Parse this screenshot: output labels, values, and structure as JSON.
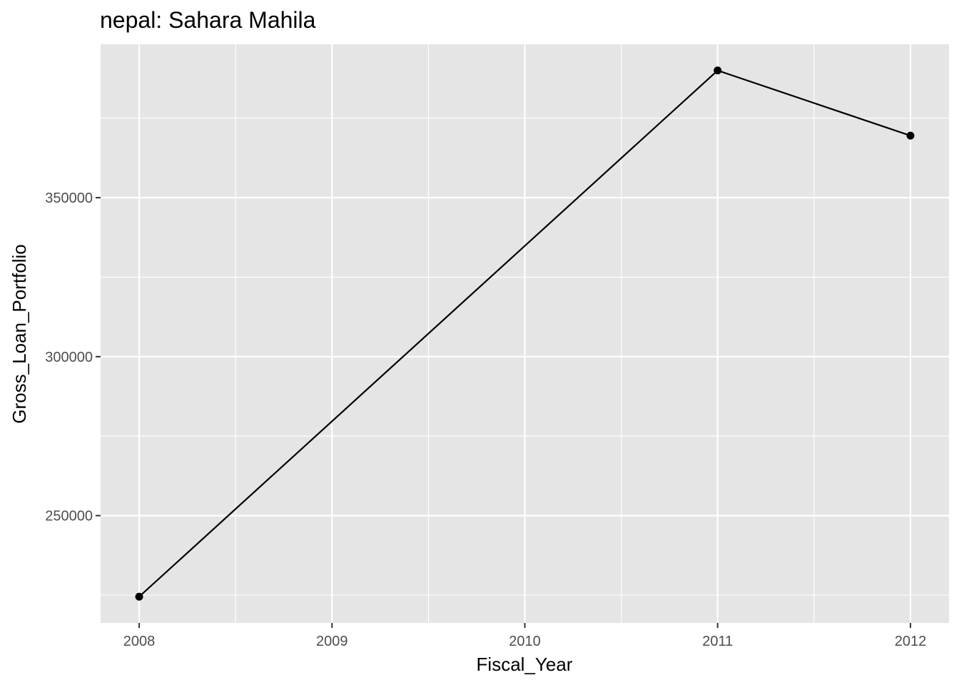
{
  "chart_data": {
    "type": "line",
    "title": "nepal:  Sahara Mahila",
    "xlabel": "Fiscal_Year",
    "ylabel": "Gross_Loan_Portfolio",
    "x": [
      2008,
      2011,
      2012
    ],
    "series": [
      {
        "values": [
          224500,
          390000,
          369500
        ]
      }
    ],
    "x_ticks": [
      2008,
      2009,
      2010,
      2011,
      2012
    ],
    "x_tick_labels": [
      "2008",
      "2009",
      "2010",
      "2011",
      "2012"
    ],
    "y_ticks": [
      250000,
      300000,
      350000
    ],
    "y_tick_labels": [
      "250000",
      "300000",
      "350000"
    ],
    "xlim": [
      2007.8,
      2012.2
    ],
    "ylim": [
      216250,
      398250
    ],
    "grid": true,
    "panel_background": "#e5e5e5",
    "grid_color": "#ffffff",
    "line_color": "#000000",
    "point_color": "#000000"
  }
}
